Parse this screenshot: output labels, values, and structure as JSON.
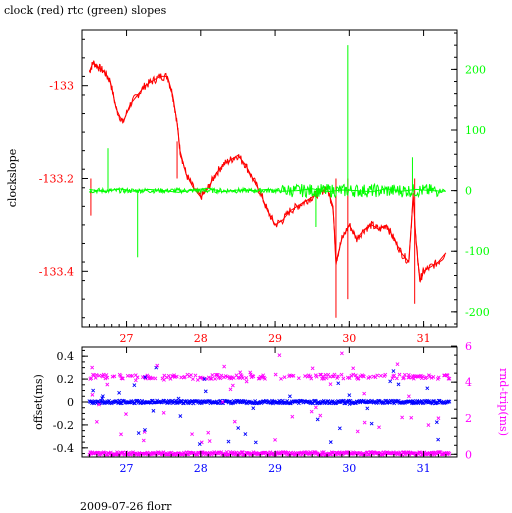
{
  "title": "clock (red) rtc (green) slopes",
  "footer": "2009-07-26 florr",
  "colors": {
    "clock": "#ff0000",
    "rtc": "#00ff00",
    "offset": "#0000ff",
    "roundtrip": "#ff00ff",
    "frame": "#000000",
    "xtick_top": "#ff0000",
    "xtick_bottom": "#0000ff"
  },
  "chart_data": [
    {
      "type": "line",
      "title": "clock (red) rtc (green) slopes",
      "ylabel": "clockslope",
      "xlim": [
        26.4,
        31.45
      ],
      "ylim": [
        -133.52,
        -132.88
      ],
      "y2lim": [
        -225,
        265
      ],
      "xticks": [
        "27",
        "28",
        "29",
        "30",
        "31"
      ],
      "yticks": [
        "-133",
        "-133.2",
        "-133.4"
      ],
      "y2ticks": [
        "200",
        "100",
        "0",
        "-100",
        "-200"
      ],
      "series": [
        {
          "name": "clock",
          "axis": "left",
          "x": [
            26.5,
            26.55,
            26.62,
            26.7,
            26.78,
            26.86,
            26.95,
            27.05,
            27.15,
            27.25,
            27.35,
            27.45,
            27.55,
            27.62,
            27.68,
            27.72,
            27.8,
            27.9,
            28.0,
            28.1,
            28.2,
            28.3,
            28.4,
            28.5,
            28.6,
            28.7,
            28.8,
            28.9,
            29.0,
            29.1,
            29.2,
            29.3,
            29.4,
            29.5,
            29.6,
            29.7,
            29.78,
            29.82,
            29.9,
            30.0,
            30.1,
            30.2,
            30.3,
            30.4,
            30.5,
            30.6,
            30.7,
            30.8,
            30.86,
            30.9,
            30.95,
            31.0,
            31.1,
            31.2,
            31.3
          ],
          "y": [
            -132.97,
            -132.95,
            -132.96,
            -132.97,
            -132.99,
            -133.05,
            -133.08,
            -133.04,
            -133.02,
            -133.0,
            -132.99,
            -132.98,
            -132.98,
            -133.02,
            -133.08,
            -133.14,
            -133.19,
            -133.22,
            -133.24,
            -133.22,
            -133.19,
            -133.17,
            -133.16,
            -133.15,
            -133.17,
            -133.2,
            -133.23,
            -133.27,
            -133.3,
            -133.29,
            -133.27,
            -133.26,
            -133.25,
            -133.24,
            -133.23,
            -133.22,
            -133.26,
            -133.38,
            -133.33,
            -133.3,
            -133.33,
            -133.31,
            -133.3,
            -133.31,
            -133.3,
            -133.33,
            -133.36,
            -133.38,
            -133.24,
            -133.34,
            -133.42,
            -133.4,
            -133.39,
            -133.38,
            -133.36
          ]
        },
        {
          "name": "rtc",
          "axis": "right",
          "x": [
            26.5,
            26.7,
            26.9,
            27.1,
            27.3,
            27.5,
            27.7,
            27.9,
            28.1,
            28.3,
            28.5,
            28.7,
            28.9,
            29.1,
            29.3,
            29.5,
            29.7,
            29.9,
            30.1,
            30.3,
            30.5,
            30.7,
            30.9,
            31.1,
            31.3
          ],
          "y": [
            2,
            -2,
            3,
            -1,
            2,
            0,
            -3,
            1,
            4,
            -2,
            1,
            0,
            2,
            -1,
            0,
            3,
            -2,
            1,
            0,
            -2,
            3,
            -1,
            2,
            0,
            -1
          ]
        }
      ]
    },
    {
      "type": "scatter",
      "ylabel": "offset(ms)",
      "y2label": "rnd-trip(ms)",
      "xlim": [
        26.4,
        31.45
      ],
      "ylim": [
        -0.48,
        0.48
      ],
      "y2lim": [
        -0.15,
        5.95
      ],
      "xticks": [
        "27",
        "28",
        "29",
        "30",
        "31"
      ],
      "yticks": [
        "0.4",
        "0.2",
        "0",
        "-0.2",
        "-0.4"
      ],
      "y2ticks": [
        "6",
        "4",
        "2",
        "0"
      ],
      "series": [
        {
          "name": "offset",
          "axis": "left",
          "x": [
            26.55,
            26.9,
            27.4,
            27.7,
            28.05,
            28.6,
            29.2,
            29.75,
            30.0,
            30.55,
            31.05
          ],
          "y": [
            0.1,
            0.08,
            0.3,
            0.03,
            0.2,
            -0.28,
            0.05,
            -0.35,
            0.06,
            0.18,
            0.12
          ]
        },
        {
          "name": "roundtrip",
          "axis": "right",
          "x": [
            26.6,
            26.95,
            27.5,
            28.1,
            28.4,
            29.0,
            29.55,
            29.9,
            30.4,
            30.8,
            31.2
          ],
          "y": [
            1.8,
            4.2,
            2.3,
            1.2,
            3.6,
            0.8,
            2.6,
            5.6,
            1.5,
            4.4,
            2.0
          ]
        }
      ]
    }
  ]
}
